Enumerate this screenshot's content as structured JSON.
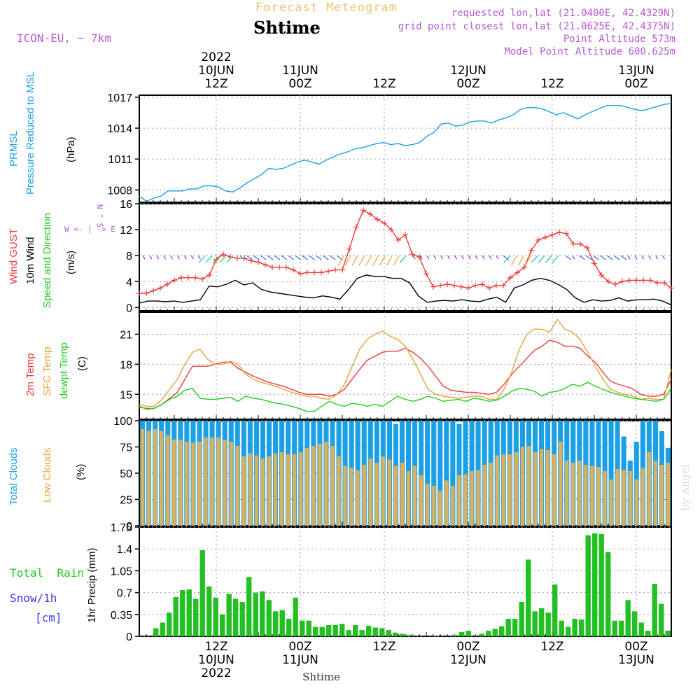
{
  "header": {
    "product": "Forecast Meteogram",
    "location": "Shtime",
    "model": "ICON-EU, ~ 7km",
    "requested": "requested lon,lat (21.0400E, 42.4329N)",
    "gridpoint": "grid point closest lon,lat (21.0625E, 42.4375N)",
    "point_alt": "Point Altitude 573m",
    "model_alt": "Model Point Altitude 600.625m",
    "watermark": "by Angel",
    "footer_location": "Shtime"
  },
  "time_axis": {
    "top_labels": [
      {
        "t": 12,
        "lines": [
          "2022",
          "10JUN",
          "12Z"
        ]
      },
      {
        "t": 24,
        "lines": [
          "11JUN",
          "00Z"
        ]
      },
      {
        "t": 36,
        "lines": [
          "12Z"
        ]
      },
      {
        "t": 48,
        "lines": [
          "12JUN",
          "00Z"
        ]
      },
      {
        "t": 60,
        "lines": [
          "12Z"
        ]
      },
      {
        "t": 72,
        "lines": [
          "13JUN",
          "00Z"
        ]
      }
    ],
    "bottom_labels": [
      {
        "t": 12,
        "lines": [
          "12Z",
          "10JUN",
          "2022"
        ]
      },
      {
        "t": 24,
        "lines": [
          "00Z",
          "11JUN"
        ]
      },
      {
        "t": 36,
        "lines": [
          "12Z"
        ]
      },
      {
        "t": 48,
        "lines": [
          "00Z",
          "12JUN"
        ]
      },
      {
        "t": 60,
        "lines": [
          "12Z"
        ]
      },
      {
        "t": 72,
        "lines": [
          "00Z",
          "13JUN"
        ]
      }
    ]
  },
  "panel_labels": {
    "pressure": {
      "a": "PRMSL",
      "b": "Pressure Reduced to MSL",
      "unit": "(hPa)"
    },
    "wind": {
      "a": "Wind GUST",
      "b": "10m Wind",
      "c": "Speed and Direction",
      "unit": "(m/s)",
      "compass": "W <- | -> E",
      "compass_v": "N ^ S"
    },
    "temp": {
      "a": "2m Temp",
      "b": "SFC Temp",
      "c": "dewpt Temp",
      "unit": "(C)"
    },
    "cloud": {
      "a": "Total Clouds",
      "b": "Low Clouds",
      "unit": "(%)"
    },
    "precip": {
      "a": "Total  Rain",
      "b": "Snow/1h",
      "c": "[cm]",
      "unit": "1hr Precip (mm)"
    }
  },
  "colors": {
    "pressure": "#1ba0e6",
    "gust": "#ee3a3a",
    "wind": "#000000",
    "temp2m": "#ee3a3a",
    "sfc": "#e6a43a",
    "dew": "#22cc22",
    "total_cloud": "#1ba0e6",
    "low_cloud": "#d9b15e",
    "rain": "#22c022",
    "label_purple": "#b45ad0",
    "label_blue": "#1ba0e6",
    "label_green": "#22cc22",
    "label_red": "#ee3a3a",
    "label_orange": "#e6a43a"
  },
  "chart_data": [
    {
      "type": "line",
      "name": "pressure",
      "title": "PRMSL",
      "ylabel": "(hPa)",
      "xlim": [
        1,
        77
      ],
      "ylim": [
        1006.8,
        1017.2
      ],
      "yticks": [
        1008,
        1011,
        1014,
        1017
      ],
      "series": [
        {
          "name": "PRMSL",
          "x_start": 1,
          "values": [
            1007.4,
            1006.9,
            1007.2,
            1007.4,
            1007.9,
            1007.9,
            1007.9,
            1008.1,
            1008.1,
            1008.4,
            1008.4,
            1008.3,
            1007.9,
            1007.8,
            1008.2,
            1008.7,
            1009.1,
            1009.5,
            1010.1,
            1010.0,
            1010.1,
            1010.4,
            1010.7,
            1010.9,
            1010.7,
            1010.5,
            1010.9,
            1011.2,
            1011.5,
            1011.7,
            1012.0,
            1012.1,
            1012.3,
            1012.5,
            1012.6,
            1012.4,
            1012.5,
            1012.3,
            1012.4,
            1012.6,
            1013.2,
            1013.6,
            1014.4,
            1014.5,
            1014.2,
            1014.3,
            1014.6,
            1014.7,
            1014.7,
            1014.5,
            1014.8,
            1015.0,
            1015.3,
            1015.8,
            1016.0,
            1016.0,
            1015.9,
            1015.6,
            1015.3,
            1015.5,
            1015.2,
            1014.9,
            1015.3,
            1015.6,
            1015.9,
            1016.2,
            1016.2,
            1016.2,
            1016.0,
            1015.8,
            1015.7,
            1015.9,
            1016.1,
            1016.3,
            1016.4
          ]
        }
      ]
    },
    {
      "type": "line",
      "name": "wind",
      "title": "Wind GUST / 10m Wind",
      "ylabel": "(m/s)",
      "xlim": [
        1,
        77
      ],
      "ylim": [
        -0.5,
        16
      ],
      "yticks": [
        0,
        4,
        8,
        12,
        16
      ],
      "series": [
        {
          "name": "Wind GUST",
          "x_start": 1,
          "values": [
            2.2,
            2.2,
            2.6,
            3.0,
            3.6,
            4.2,
            4.6,
            4.6,
            4.6,
            4.4,
            5.0,
            7.4,
            8.2,
            7.8,
            7.6,
            7.6,
            7.2,
            7.0,
            6.6,
            6.2,
            6.2,
            6.2,
            5.8,
            5.2,
            5.4,
            5.4,
            5.4,
            5.6,
            5.8,
            5.8,
            9.0,
            12.4,
            15.0,
            14.4,
            13.6,
            13.0,
            12.0,
            10.4,
            11.2,
            8.2,
            7.8,
            5.2,
            3.2,
            3.4,
            3.6,
            3.4,
            3.2,
            3.0,
            3.4,
            3.6,
            3.0,
            3.4,
            3.4,
            4.6,
            5.4,
            6.2,
            8.8,
            10.4,
            10.8,
            11.2,
            11.6,
            11.4,
            9.8,
            9.8,
            9.2,
            6.8,
            5.0,
            4.0,
            3.6,
            4.0,
            4.2,
            4.2,
            4.2,
            4.2,
            3.8,
            3.8,
            3.0
          ]
        },
        {
          "name": "10m Wind",
          "x_start": 1,
          "values": [
            0.7,
            1.0,
            1.0,
            0.9,
            1.0,
            0.8,
            1.0,
            1.2,
            3.3,
            3.2,
            3.6,
            4.2,
            3.5,
            3.8,
            2.8,
            2.4,
            2.2,
            2.0,
            1.8,
            1.6,
            1.5,
            1.8,
            1.6,
            1.3,
            2.8,
            4.5,
            5.0,
            4.8,
            4.8,
            4.5,
            4.5,
            3.8,
            1.8,
            0.8,
            1.0,
            1.1,
            1.0,
            1.2,
            1.0,
            0.9,
            1.3,
            1.6,
            0.8,
            3.0,
            3.5,
            4.2,
            4.5,
            4.2,
            3.6,
            2.8,
            1.5,
            0.8,
            1.2,
            1.0,
            1.1,
            1.5,
            1.0,
            1.2,
            1.2,
            1.3,
            1.0,
            0.4
          ]
        }
      ]
    },
    {
      "type": "line",
      "name": "temperature",
      "title": "2m Temp / SFC Temp / dewpt Temp",
      "ylabel": "(C)",
      "xlim": [
        1,
        77
      ],
      "ylim": [
        12.5,
        23.2
      ],
      "yticks": [
        15,
        18,
        21
      ],
      "series": [
        {
          "name": "2m Temp",
          "x_start": 1,
          "values": [
            13.8,
            13.5,
            13.6,
            14.0,
            14.6,
            15.2,
            16.5,
            17.8,
            17.8,
            17.8,
            18.0,
            18.2,
            18.2,
            17.6,
            17.2,
            16.8,
            16.5,
            16.2,
            16.0,
            15.8,
            15.5,
            15.2,
            15.0,
            15.0,
            15.0,
            14.8,
            15.0,
            15.5,
            16.5,
            17.5,
            18.4,
            18.8,
            19.2,
            19.3,
            19.3,
            19.6,
            19.2,
            18.6,
            17.8,
            16.8,
            15.8,
            15.4,
            15.3,
            15.2,
            15.2,
            15.1,
            15.0,
            15.2,
            16.0,
            17.0,
            17.8,
            18.6,
            19.4,
            19.8,
            20.4,
            20.2,
            19.8,
            19.8,
            19.6,
            18.8,
            18.2,
            17.2,
            16.3,
            16.0,
            15.8,
            15.5,
            15.0,
            14.8,
            14.8,
            15.0,
            16.5
          ]
        },
        {
          "name": "SFC Temp",
          "x_start": 1,
          "values": [
            14.0,
            13.8,
            13.8,
            14.5,
            15.5,
            16.5,
            18.0,
            19.2,
            19.5,
            18.5,
            18.0,
            18.0,
            18.3,
            18.0,
            17.0,
            16.5,
            16.2,
            16.0,
            15.8,
            15.5,
            15.2,
            15.0,
            14.8,
            14.8,
            14.6,
            14.5,
            15.0,
            16.0,
            17.8,
            19.5,
            20.5,
            21.0,
            21.3,
            20.8,
            20.5,
            19.8,
            18.5,
            17.0,
            15.5,
            15.0,
            14.8,
            14.7,
            14.6,
            14.7,
            14.8,
            14.8,
            14.5,
            14.5,
            15.5,
            17.2,
            19.5,
            21.0,
            21.5,
            21.5,
            21.2,
            22.5,
            21.5,
            21.2,
            20.5,
            19.2,
            17.8,
            16.5,
            15.5,
            15.2,
            15.0,
            14.8,
            14.5,
            14.6,
            14.5,
            14.5,
            17.5
          ]
        },
        {
          "name": "dewpt Temp",
          "x_start": 1,
          "values": [
            13.7,
            13.6,
            13.6,
            14.0,
            14.5,
            14.8,
            15.4,
            15.6,
            14.6,
            14.5,
            14.5,
            14.6,
            14.7,
            14.3,
            14.8,
            14.6,
            14.5,
            14.3,
            14.1,
            14.0,
            13.8,
            13.6,
            13.3,
            13.3,
            13.8,
            14.3,
            14.0,
            13.8,
            14.1,
            14.0,
            13.8,
            14.0,
            13.8,
            14.3,
            14.8,
            14.5,
            14.3,
            14.5,
            14.8,
            14.6,
            14.3,
            14.4,
            14.5,
            14.3,
            14.6,
            14.5,
            14.3,
            14.4,
            14.8,
            15.3,
            15.6,
            15.5,
            15.3,
            14.8,
            15.2,
            15.3,
            15.6,
            16.0,
            15.8,
            16.2,
            15.8,
            15.5,
            15.2,
            15.0,
            14.8,
            14.6,
            14.5,
            14.4,
            14.3,
            14.5,
            15.6
          ]
        }
      ]
    },
    {
      "type": "bar",
      "name": "clouds",
      "title": "Total Clouds / Low Clouds",
      "ylabel": "(%)",
      "xlim": [
        1,
        77
      ],
      "ylim": [
        0,
        100
      ],
      "yticks": [
        0,
        25,
        50,
        75,
        100
      ],
      "series": [
        {
          "name": "Total Clouds",
          "x_start": 1,
          "values": [
            100,
            100,
            100,
            100,
            100,
            100,
            100,
            100,
            100,
            100,
            100,
            100,
            100,
            100,
            100,
            100,
            100,
            100,
            100,
            100,
            100,
            100,
            100,
            100,
            100,
            100,
            100,
            100,
            100,
            100,
            100,
            100,
            100,
            100,
            100,
            100,
            100,
            100,
            100,
            100,
            97,
            100,
            100,
            100,
            100,
            100,
            100,
            100,
            100,
            100,
            97,
            100,
            100,
            99,
            100,
            100,
            100,
            100,
            100,
            100,
            100,
            100,
            100,
            100,
            100,
            100,
            100,
            100,
            100,
            100,
            100,
            100,
            100,
            100,
            100,
            100,
            85,
            62,
            80,
            100,
            100,
            100,
            90,
            74
          ]
        },
        {
          "name": "Low Clouds",
          "x_start": 1,
          "values": [
            92,
            90,
            92,
            90,
            86,
            82,
            82,
            80,
            79,
            80,
            84,
            84,
            84,
            82,
            80,
            76,
            66,
            69,
            67,
            64,
            66,
            69,
            70,
            68,
            68,
            70,
            74,
            76,
            78,
            80,
            76,
            66,
            57,
            55,
            53,
            58,
            64,
            60,
            66,
            63,
            57,
            60,
            52,
            57,
            48,
            40,
            38,
            33,
            43,
            38,
            48,
            49,
            52,
            53,
            58,
            60,
            67,
            68,
            68,
            70,
            75,
            76,
            70,
            73,
            72,
            68,
            80,
            62,
            60,
            62,
            58,
            57,
            56,
            52,
            44,
            54,
            53,
            52,
            44,
            55,
            70,
            62,
            58,
            60
          ]
        }
      ]
    },
    {
      "type": "bar",
      "name": "precip",
      "title": "Total Rain",
      "ylabel": "1hr Precip (mm)",
      "xlim": [
        1,
        77
      ],
      "ylim": [
        0,
        1.75
      ],
      "yticks": [
        0,
        0.35,
        0.7,
        1.05,
        1.4,
        1.75
      ],
      "series": [
        {
          "name": "Total Rain",
          "x_start": 1,
          "values": [
            0.0,
            0.0,
            0.13,
            0.22,
            0.38,
            0.63,
            0.74,
            0.75,
            0.6,
            1.38,
            0.8,
            0.62,
            0.35,
            0.68,
            0.6,
            0.55,
            0.95,
            0.7,
            0.72,
            0.58,
            0.4,
            0.42,
            0.28,
            0.62,
            0.25,
            0.25,
            0.15,
            0.15,
            0.18,
            0.18,
            0.2,
            0.1,
            0.18,
            0.1,
            0.17,
            0.14,
            0.13,
            0.1,
            0.06,
            0.04,
            0.02,
            0.0,
            0.0,
            0.0,
            0.01,
            0.0,
            0.0,
            0.02,
            0.07,
            0.09,
            0.0,
            0.04,
            0.09,
            0.12,
            0.16,
            0.28,
            0.28,
            0.55,
            1.23,
            0.4,
            0.45,
            0.38,
            0.83,
            0.25,
            0.15,
            0.28,
            0.27,
            1.62,
            1.65,
            1.64,
            1.35,
            0.25,
            0.25,
            0.58,
            0.4,
            0.22,
            0.09,
            0.84,
            0.52,
            0.09
          ]
        }
      ]
    }
  ]
}
